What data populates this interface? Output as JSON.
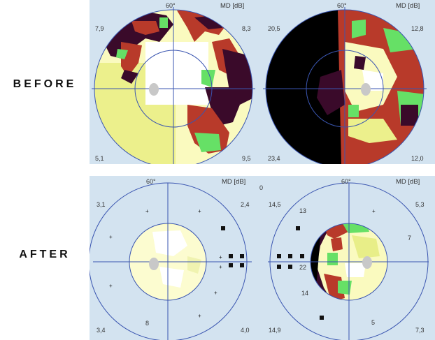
{
  "labels": {
    "before": "BEFORE",
    "after": "AFTER"
  },
  "before": {
    "left": {
      "angle": "60°",
      "md": "MD [dB]",
      "tl": "7,9",
      "tr": "8,3",
      "bl": "5,1",
      "br": "9,5"
    },
    "right": {
      "angle": "60°",
      "md": "MD [dB]",
      "tl": "20,5",
      "tr": "12,8",
      "bl": "23,4",
      "br": "12,0"
    }
  },
  "after": {
    "stray": "0",
    "left": {
      "angle": "60°",
      "md": "MD [dB]",
      "tl": "3,1",
      "tr": "2,4",
      "bl": "3,4",
      "br": "4,0",
      "inner": "8"
    },
    "right": {
      "angle": "60°",
      "md": "MD [dB]",
      "tl": "14,5",
      "tr": "5,3",
      "bl": "14,9",
      "br": "7,3",
      "n1": "13",
      "n2": "7",
      "n3": "22",
      "n4": "14",
      "n5": "5"
    }
  },
  "colors": {
    "panel_bg": "#d3e3f0",
    "grid": "#3a55b0",
    "normal": "#fafabf",
    "mild": "#e8ee88",
    "green": "#66e066",
    "moderate": "#b83a2a",
    "severe": "#3a0a2a",
    "absolute": "#000000"
  }
}
